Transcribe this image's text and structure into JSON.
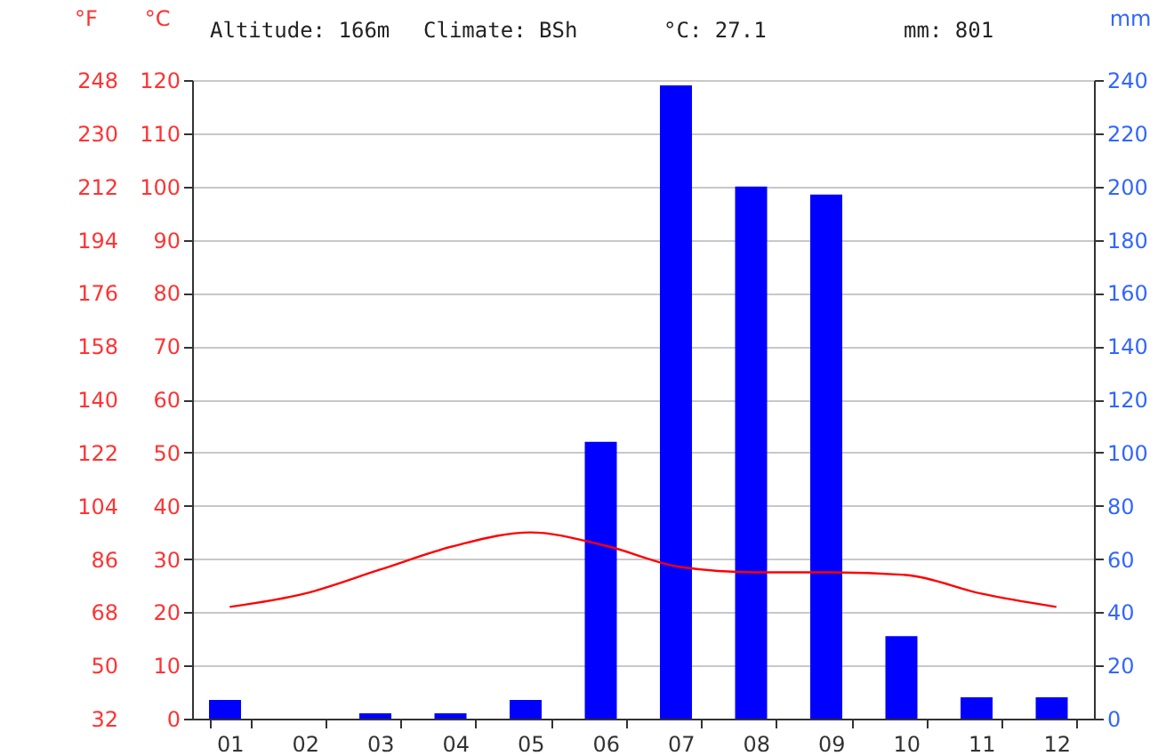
{
  "chart_data": {
    "type": "bar",
    "annotations": [
      "Altitude: 166m",
      "Climate: BSh",
      "°C: 27.1",
      "mm: 801"
    ],
    "categories": [
      "01",
      "02",
      "03",
      "04",
      "05",
      "06",
      "07",
      "08",
      "09",
      "10",
      "11",
      "12"
    ],
    "ylabel": "°C",
    "y2label": "mm",
    "y3label": "°F",
    "ylim": [
      0,
      120
    ],
    "yticks": [
      0,
      10,
      20,
      30,
      40,
      50,
      60,
      70,
      80,
      90,
      100,
      110,
      120
    ],
    "y2lim": [
      0,
      240
    ],
    "y2ticks": [
      0,
      20,
      40,
      60,
      80,
      100,
      120,
      140,
      160,
      180,
      200,
      220,
      240
    ],
    "y3lim": [
      32,
      248
    ],
    "y3ticks": [
      32,
      50,
      68,
      86,
      104,
      122,
      140,
      158,
      176,
      194,
      212,
      230,
      248
    ],
    "grid": "y",
    "series": [
      {
        "axis": "y2",
        "color": "#0000ff",
        "values": [
          7,
          0,
          2,
          2,
          7,
          104,
          238,
          200,
          197,
          31,
          8,
          8
        ]
      },
      {
        "type": "line",
        "axis": "y",
        "color": "#ff0000",
        "values": [
          21,
          23.5,
          28,
          32.5,
          35,
          32.5,
          28.5,
          27.5,
          27.5,
          27,
          23.5,
          21
        ]
      }
    ]
  }
}
